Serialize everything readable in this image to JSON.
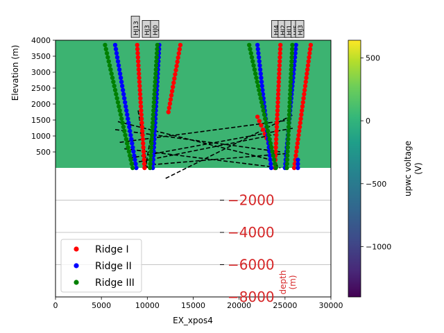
{
  "chart_data": {
    "type": "scatter",
    "xlabel": "EX_xpos4",
    "ylabel": "Elevation (m)",
    "right_axis_label": "depth\n(m)",
    "xlim": [
      0,
      30000
    ],
    "ylim_upper": [
      0,
      4000
    ],
    "ylim_lower": [
      -8000,
      0
    ],
    "x_ticks": [
      "0",
      "5000",
      "10000",
      "15000",
      "20000",
      "25000",
      "30000"
    ],
    "y_ticks_upper": [
      "4000",
      "3500",
      "3000",
      "2500",
      "2000",
      "1500",
      "1000",
      "500"
    ],
    "y_ticks_lower": [
      "−2000",
      "−4000",
      "−6000",
      "−8000"
    ],
    "grid_lower": true,
    "background_color": "#3cb371",
    "colorbar": {
      "label": "upwc voltage\n(V)",
      "ticks": [
        "500",
        "0",
        "−500",
        "−1000"
      ],
      "tick_values": [
        500,
        0,
        -500,
        -1000
      ],
      "range": [
        -1400,
        640
      ]
    },
    "legend": {
      "position": "lower-left",
      "entries": [
        {
          "name": "Ridge I",
          "color": "#ff0000"
        },
        {
          "name": "Ridge II",
          "color": "#0000ff"
        },
        {
          "name": "Ridge III",
          "color": "#008000"
        }
      ]
    },
    "series": [
      {
        "name": "Ridge I",
        "color": "#ff0000",
        "lines": [
          {
            "x0": 9700,
            "y0": 0,
            "x1": 8900,
            "y1": 3850
          },
          {
            "x0": 12300,
            "y0": 1750,
            "x1": 13600,
            "y1": 3850
          },
          {
            "x0": 23900,
            "y0": 0,
            "x1": 24500,
            "y1": 3850
          },
          {
            "x0": 26000,
            "y0": 0,
            "x1": 27800,
            "y1": 3850
          },
          {
            "x0": 23200,
            "y0": 800,
            "x1": 22000,
            "y1": 1600
          }
        ]
      },
      {
        "name": "Ridge II",
        "color": "#0000ff",
        "lines": [
          {
            "x0": 8800,
            "y0": 0,
            "x1": 6500,
            "y1": 3850
          },
          {
            "x0": 10600,
            "y0": 0,
            "x1": 11300,
            "y1": 3850
          },
          {
            "x0": 23500,
            "y0": 0,
            "x1": 22000,
            "y1": 3850
          },
          {
            "x0": 25000,
            "y0": 0,
            "x1": 26200,
            "y1": 3850
          },
          {
            "x0": 26400,
            "y0": 0,
            "x1": 26400,
            "y1": 250
          }
        ]
      },
      {
        "name": "Ridge III",
        "color": "#008000",
        "lines": [
          {
            "x0": 8400,
            "y0": 0,
            "x1": 5400,
            "y1": 3850
          },
          {
            "x0": 10300,
            "y0": 0,
            "x1": 11100,
            "y1": 3850
          },
          {
            "x0": 24000,
            "y0": 0,
            "x1": 21100,
            "y1": 3850
          },
          {
            "x0": 25200,
            "y0": 0,
            "x1": 25800,
            "y1": 3850
          }
        ]
      }
    ],
    "dashed_lines": [
      [
        [
          6500,
          1200
        ],
        [
          24500,
          500
        ]
      ],
      [
        [
          6800,
          1450
        ],
        [
          23500,
          250
        ]
      ],
      [
        [
          7000,
          800
        ],
        [
          25500,
          1500
        ]
      ],
      [
        [
          8000,
          300
        ],
        [
          26000,
          1250
        ]
      ],
      [
        [
          8400,
          150
        ],
        [
          24000,
          1050
        ]
      ],
      [
        [
          9800,
          0
        ],
        [
          10800,
          1700
        ]
      ],
      [
        [
          10500,
          100
        ],
        [
          25200,
          450
        ]
      ],
      [
        [
          7500,
          600
        ],
        [
          24500,
          0
        ]
      ],
      [
        [
          9000,
          1800
        ],
        [
          10000,
          0
        ]
      ],
      [
        [
          12000,
          -650
        ],
        [
          25800,
          1650
        ]
      ],
      [
        [
          23200,
          1100
        ],
        [
          24200,
          0
        ]
      ]
    ],
    "well_labels": [
      {
        "text": "HJ13",
        "x": 8700
      },
      {
        "text": "HJ3",
        "x": 9900
      },
      {
        "text": "HJ0",
        "x": 10800
      },
      {
        "text": "HJ4",
        "x": 24000
      },
      {
        "text": "HJ2",
        "x": 24700
      },
      {
        "text": "HJ1",
        "x": 25400
      },
      {
        "text": "HJ5",
        "x": 26100
      },
      {
        "text": "HJ3",
        "x": 26600
      }
    ]
  }
}
